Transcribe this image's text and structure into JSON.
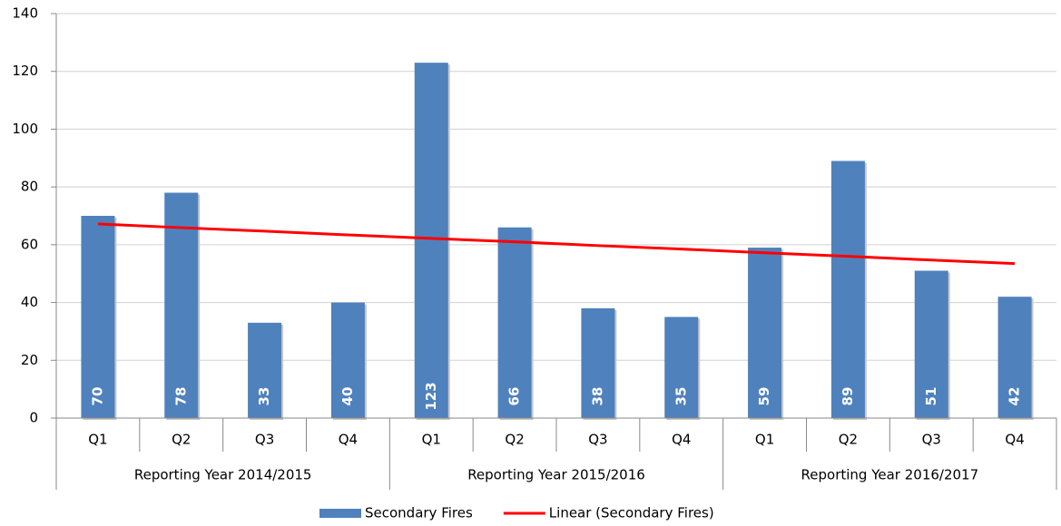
{
  "chart_data": {
    "type": "bar",
    "categories": [
      "Q1",
      "Q2",
      "Q3",
      "Q4",
      "Q1",
      "Q2",
      "Q3",
      "Q4",
      "Q1",
      "Q2",
      "Q3",
      "Q4"
    ],
    "groups": [
      "Reporting Year 2014/2015",
      "Reporting Year 2015/2016",
      "Reporting Year 2016/2017"
    ],
    "series": [
      {
        "name": "Secondary Fires",
        "type": "bar",
        "color": "#4f81bd",
        "values": [
          70,
          78,
          33,
          40,
          123,
          66,
          38,
          35,
          59,
          89,
          51,
          42
        ]
      },
      {
        "name": "Linear (Secondary Fires)",
        "type": "line",
        "color": "#ff0000",
        "values": [
          67.2,
          65.9,
          64.7,
          63.4,
          62.2,
          61.0,
          59.7,
          58.5,
          57.2,
          56.0,
          54.7,
          53.5
        ]
      }
    ],
    "ylim": [
      0,
      140
    ],
    "yticks": [
      0,
      20,
      40,
      60,
      80,
      100,
      120,
      140
    ],
    "grid": true,
    "legend": "bottom"
  }
}
